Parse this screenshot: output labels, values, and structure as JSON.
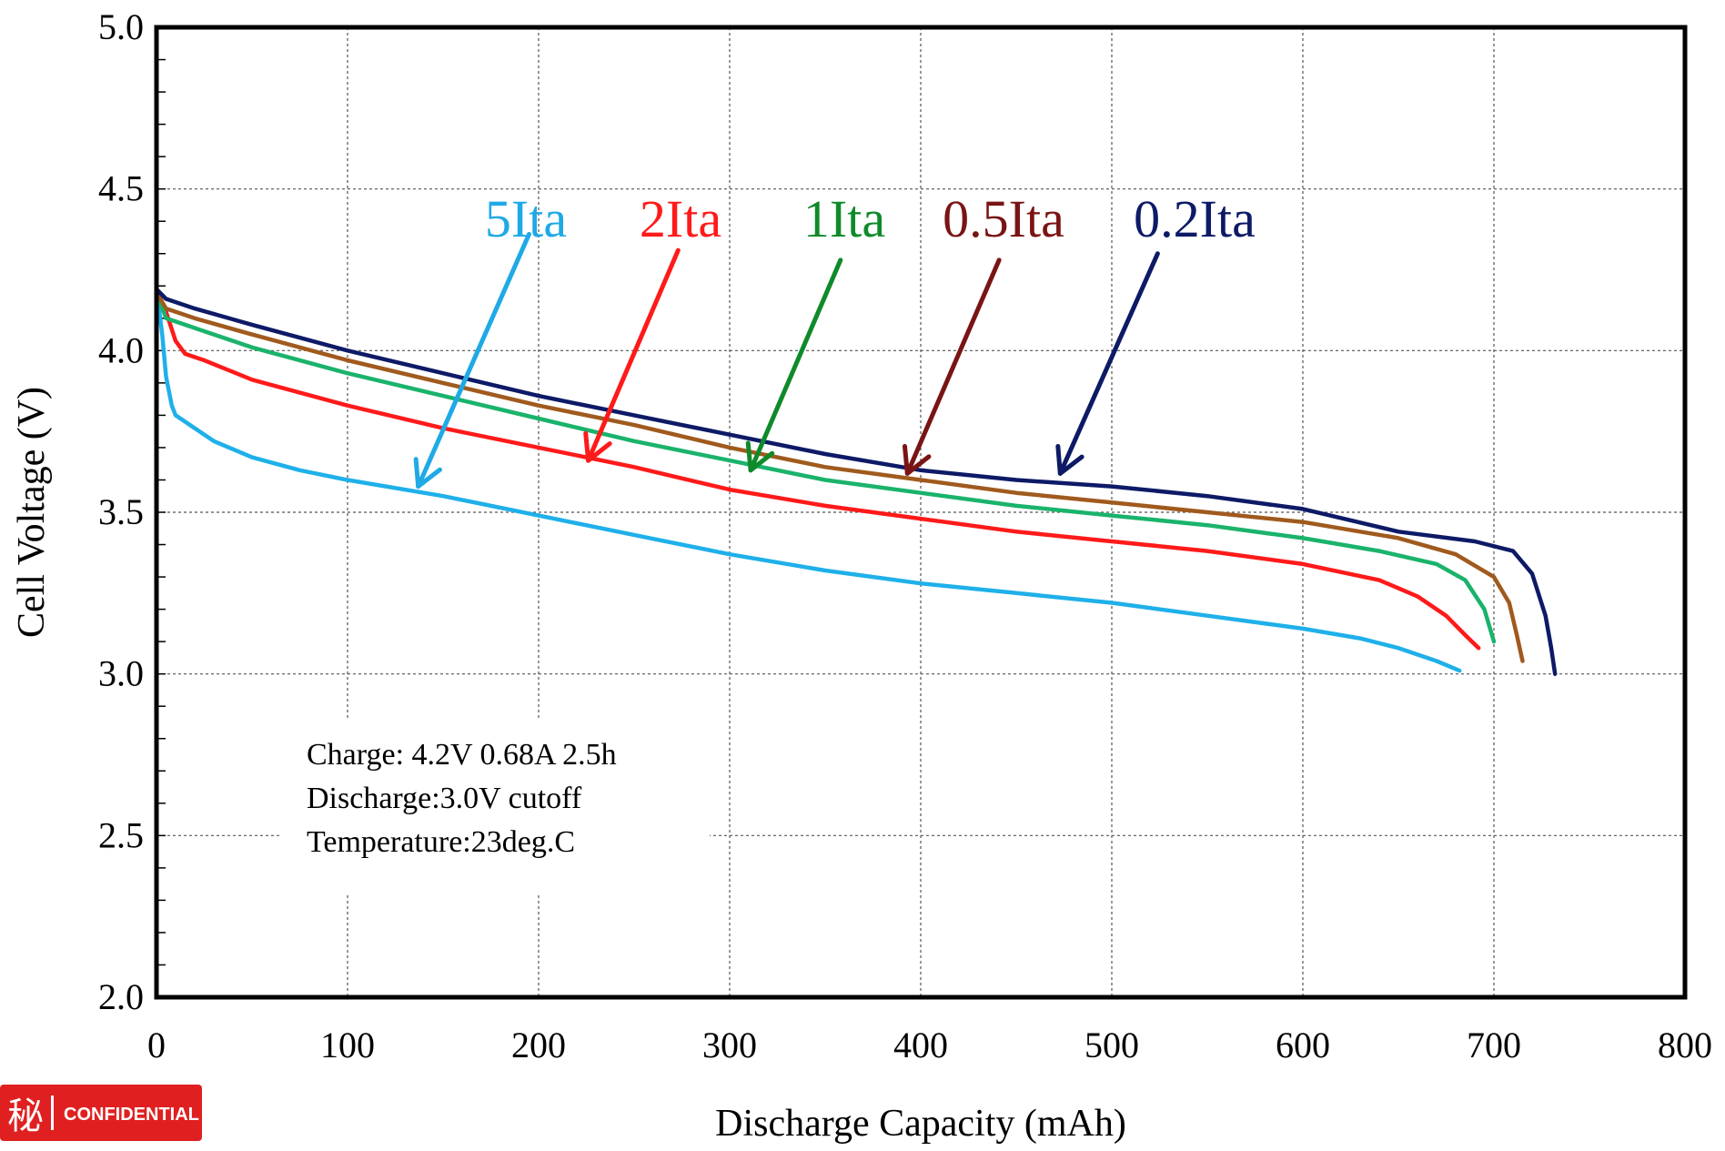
{
  "chart_data": {
    "type": "line",
    "title": "",
    "xlabel": "Discharge Capacity  (mAh)",
    "ylabel": "Cell Voltage  (V)",
    "xlim": [
      0,
      800
    ],
    "ylim": [
      2.0,
      5.0
    ],
    "x_ticks": [
      "0",
      "100",
      "200",
      "300",
      "400",
      "500",
      "600",
      "700",
      "800"
    ],
    "y_ticks": [
      "2.0",
      "2.5",
      "3.0",
      "3.5",
      "4.0",
      "4.5",
      "5.0"
    ],
    "grid": true,
    "series": [
      {
        "name": "5Ita",
        "color": "#1fb0ea",
        "points": [
          [
            0,
            4.19
          ],
          [
            3,
            4.05
          ],
          [
            5,
            3.92
          ],
          [
            8,
            3.83
          ],
          [
            10,
            3.8
          ],
          [
            15,
            3.78
          ],
          [
            20,
            3.76
          ],
          [
            30,
            3.72
          ],
          [
            50,
            3.67
          ],
          [
            75,
            3.63
          ],
          [
            100,
            3.6
          ],
          [
            150,
            3.55
          ],
          [
            200,
            3.49
          ],
          [
            250,
            3.43
          ],
          [
            300,
            3.37
          ],
          [
            350,
            3.32
          ],
          [
            400,
            3.28
          ],
          [
            450,
            3.25
          ],
          [
            500,
            3.22
          ],
          [
            550,
            3.18
          ],
          [
            600,
            3.14
          ],
          [
            630,
            3.11
          ],
          [
            650,
            3.08
          ],
          [
            670,
            3.04
          ],
          [
            682,
            3.01
          ]
        ]
      },
      {
        "name": "2Ita",
        "color": "#ff1a1a",
        "points": [
          [
            0,
            4.19
          ],
          [
            5,
            4.12
          ],
          [
            10,
            4.03
          ],
          [
            15,
            3.99
          ],
          [
            25,
            3.97
          ],
          [
            50,
            3.91
          ],
          [
            100,
            3.83
          ],
          [
            150,
            3.76
          ],
          [
            200,
            3.7
          ],
          [
            250,
            3.64
          ],
          [
            300,
            3.57
          ],
          [
            350,
            3.52
          ],
          [
            400,
            3.48
          ],
          [
            450,
            3.44
          ],
          [
            500,
            3.41
          ],
          [
            550,
            3.38
          ],
          [
            600,
            3.34
          ],
          [
            640,
            3.29
          ],
          [
            660,
            3.24
          ],
          [
            675,
            3.18
          ],
          [
            685,
            3.12
          ],
          [
            692,
            3.08
          ]
        ]
      },
      {
        "name": "1Ita",
        "color": "#1ab36b",
        "points": [
          [
            0,
            4.18
          ],
          [
            5,
            4.1
          ],
          [
            20,
            4.07
          ],
          [
            50,
            4.01
          ],
          [
            100,
            3.93
          ],
          [
            150,
            3.86
          ],
          [
            200,
            3.79
          ],
          [
            250,
            3.72
          ],
          [
            300,
            3.66
          ],
          [
            350,
            3.6
          ],
          [
            400,
            3.56
          ],
          [
            450,
            3.52
          ],
          [
            500,
            3.49
          ],
          [
            550,
            3.46
          ],
          [
            600,
            3.42
          ],
          [
            640,
            3.38
          ],
          [
            670,
            3.34
          ],
          [
            685,
            3.29
          ],
          [
            695,
            3.2
          ],
          [
            700,
            3.1
          ]
        ]
      },
      {
        "name": "0.5Ita",
        "color": "#a05a1e",
        "points": [
          [
            0,
            4.18
          ],
          [
            5,
            4.13
          ],
          [
            20,
            4.1
          ],
          [
            50,
            4.05
          ],
          [
            100,
            3.97
          ],
          [
            150,
            3.9
          ],
          [
            200,
            3.83
          ],
          [
            250,
            3.77
          ],
          [
            300,
            3.7
          ],
          [
            350,
            3.64
          ],
          [
            400,
            3.6
          ],
          [
            450,
            3.56
          ],
          [
            500,
            3.53
          ],
          [
            550,
            3.5
          ],
          [
            600,
            3.47
          ],
          [
            650,
            3.42
          ],
          [
            680,
            3.37
          ],
          [
            700,
            3.3
          ],
          [
            708,
            3.22
          ],
          [
            712,
            3.12
          ],
          [
            715,
            3.04
          ]
        ]
      },
      {
        "name": "0.2Ita",
        "color": "#0d1a66",
        "points": [
          [
            0,
            4.19
          ],
          [
            5,
            4.16
          ],
          [
            20,
            4.13
          ],
          [
            50,
            4.08
          ],
          [
            100,
            4.0
          ],
          [
            150,
            3.93
          ],
          [
            200,
            3.86
          ],
          [
            250,
            3.8
          ],
          [
            300,
            3.74
          ],
          [
            350,
            3.68
          ],
          [
            400,
            3.63
          ],
          [
            450,
            3.6
          ],
          [
            500,
            3.58
          ],
          [
            550,
            3.55
          ],
          [
            600,
            3.51
          ],
          [
            650,
            3.44
          ],
          [
            690,
            3.41
          ],
          [
            710,
            3.38
          ],
          [
            720,
            3.31
          ],
          [
            727,
            3.18
          ],
          [
            730,
            3.08
          ],
          [
            732,
            3.0
          ]
        ]
      }
    ],
    "series_label_colors": {
      "5Ita": "#1fa9e6",
      "2Ita": "#ff1a1a",
      "1Ita": "#0f8a2a",
      "0.5Ita": "#7a1414",
      "0.2Ita": "#0d1a66"
    },
    "arrows": [
      {
        "series": "5Ita",
        "from": [
          195,
          4.36
        ],
        "to": [
          137,
          3.58
        ]
      },
      {
        "series": "2Ita",
        "from": [
          273,
          4.31
        ],
        "to": [
          226,
          3.66
        ]
      },
      {
        "series": "1Ita",
        "from": [
          358,
          4.28
        ],
        "to": [
          311,
          3.63
        ]
      },
      {
        "series": "0.5Ita",
        "from": [
          441,
          4.28
        ],
        "to": [
          393,
          3.62
        ]
      },
      {
        "series": "0.2Ita",
        "from": [
          524,
          4.3
        ],
        "to": [
          473,
          3.62
        ]
      }
    ],
    "annotation": {
      "lines": [
        "Charge: 4.2V  0.68A  2.5h",
        "Discharge:3.0V  cutoff",
        "Temperature:23deg.C"
      ]
    },
    "legend": "inline-labels-top"
  },
  "watermark": {
    "glyph": "秘",
    "text": "CONFIDENTIAL",
    "color": "#e02020"
  }
}
